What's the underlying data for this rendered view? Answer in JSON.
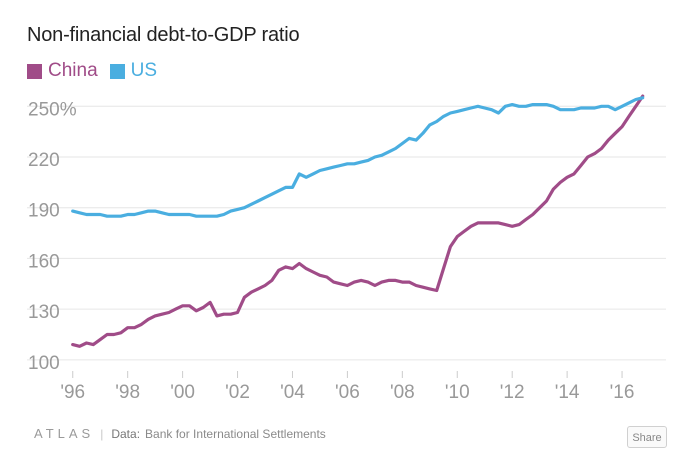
{
  "chart_data": {
    "type": "line",
    "title": "Non-financial debt-to-GDP ratio",
    "xlabel": "",
    "ylabel": "",
    "xlim": [
      1995.9,
      2017.6
    ],
    "ylim": [
      94,
      262
    ],
    "y_ticks": [
      100,
      130,
      160,
      190,
      220,
      250
    ],
    "y_tick_labels": [
      "100",
      "130",
      "160",
      "190",
      "220",
      "250%"
    ],
    "x_ticks": [
      1996,
      1998,
      2000,
      2002,
      2004,
      2006,
      2008,
      2010,
      2012,
      2014,
      2016
    ],
    "x_tick_labels": [
      "'96",
      "'98",
      "'00",
      "'02",
      "'04",
      "'06",
      "'08",
      "'10",
      "'12",
      "'14",
      "'16"
    ],
    "grid": true,
    "legend": "top-left",
    "series": [
      {
        "name": "China",
        "color": "#a04c88",
        "x": [
          1996.0,
          1996.25,
          1996.5,
          1996.75,
          1997.0,
          1997.25,
          1997.5,
          1997.75,
          1998.0,
          1998.25,
          1998.5,
          1998.75,
          1999.0,
          1999.25,
          1999.5,
          1999.75,
          2000.0,
          2000.25,
          2000.5,
          2000.75,
          2001.0,
          2001.25,
          2001.5,
          2001.75,
          2002.0,
          2002.25,
          2002.5,
          2002.75,
          2003.0,
          2003.25,
          2003.5,
          2003.75,
          2004.0,
          2004.25,
          2004.5,
          2004.75,
          2005.0,
          2005.25,
          2005.5,
          2005.75,
          2006.0,
          2006.25,
          2006.5,
          2006.75,
          2007.0,
          2007.25,
          2007.5,
          2007.75,
          2008.0,
          2008.25,
          2008.5,
          2008.75,
          2009.0,
          2009.25,
          2009.5,
          2009.75,
          2010.0,
          2010.25,
          2010.5,
          2010.75,
          2011.0,
          2011.25,
          2011.5,
          2011.75,
          2012.0,
          2012.25,
          2012.5,
          2012.75,
          2013.0,
          2013.25,
          2013.5,
          2013.75,
          2014.0,
          2014.25,
          2014.5,
          2014.75,
          2015.0,
          2015.25,
          2015.5,
          2015.75,
          2016.0,
          2016.25,
          2016.5,
          2016.75
        ],
        "values": [
          109,
          108,
          110,
          109,
          112,
          115,
          115,
          116,
          119,
          119,
          121,
          124,
          126,
          127,
          128,
          130,
          132,
          132,
          129,
          131,
          134,
          126,
          127,
          127,
          128,
          137,
          140,
          142,
          144,
          147,
          153,
          155,
          154,
          157,
          154,
          152,
          150,
          149,
          146,
          145,
          144,
          146,
          147,
          146,
          144,
          146,
          147,
          147,
          146,
          146,
          144,
          143,
          142,
          141,
          154,
          167,
          173,
          176,
          179,
          181,
          181,
          181,
          181,
          180,
          179,
          180,
          183,
          186,
          190,
          194,
          201,
          205,
          208,
          210,
          215,
          220,
          222,
          225,
          230,
          234,
          238,
          244,
          250,
          256
        ]
      },
      {
        "name": "US",
        "color": "#4aaee0",
        "x": [
          1996.0,
          1996.25,
          1996.5,
          1996.75,
          1997.0,
          1997.25,
          1997.5,
          1997.75,
          1998.0,
          1998.25,
          1998.5,
          1998.75,
          1999.0,
          1999.25,
          1999.5,
          1999.75,
          2000.0,
          2000.25,
          2000.5,
          2000.75,
          2001.0,
          2001.25,
          2001.5,
          2001.75,
          2002.0,
          2002.25,
          2002.5,
          2002.75,
          2003.0,
          2003.25,
          2003.5,
          2003.75,
          2004.0,
          2004.25,
          2004.5,
          2004.75,
          2005.0,
          2005.25,
          2005.5,
          2005.75,
          2006.0,
          2006.25,
          2006.5,
          2006.75,
          2007.0,
          2007.25,
          2007.5,
          2007.75,
          2008.0,
          2008.25,
          2008.5,
          2008.75,
          2009.0,
          2009.25,
          2009.5,
          2009.75,
          2010.0,
          2010.25,
          2010.5,
          2010.75,
          2011.0,
          2011.25,
          2011.5,
          2011.75,
          2012.0,
          2012.25,
          2012.5,
          2012.75,
          2013.0,
          2013.25,
          2013.5,
          2013.75,
          2014.0,
          2014.25,
          2014.5,
          2014.75,
          2015.0,
          2015.25,
          2015.5,
          2015.75,
          2016.0,
          2016.25,
          2016.5,
          2016.75
        ],
        "values": [
          188,
          187,
          186,
          186,
          186,
          185,
          185,
          185,
          186,
          186,
          187,
          188,
          188,
          187,
          186,
          186,
          186,
          186,
          185,
          185,
          185,
          185,
          186,
          188,
          189,
          190,
          192,
          194,
          196,
          198,
          200,
          202,
          202,
          210,
          208,
          210,
          212,
          213,
          214,
          215,
          216,
          216,
          217,
          218,
          220,
          221,
          223,
          225,
          228,
          231,
          230,
          234,
          239,
          241,
          244,
          246,
          247,
          248,
          249,
          250,
          249,
          248,
          246,
          250,
          251,
          250,
          250,
          251,
          251,
          251,
          250,
          248,
          248,
          248,
          249,
          249,
          249,
          250,
          250,
          248,
          250,
          252,
          254,
          255
        ]
      }
    ]
  },
  "footer": {
    "logo": "ATLAS",
    "source_label": "Data:",
    "source": "Bank for International Settlements",
    "share": "Share"
  }
}
